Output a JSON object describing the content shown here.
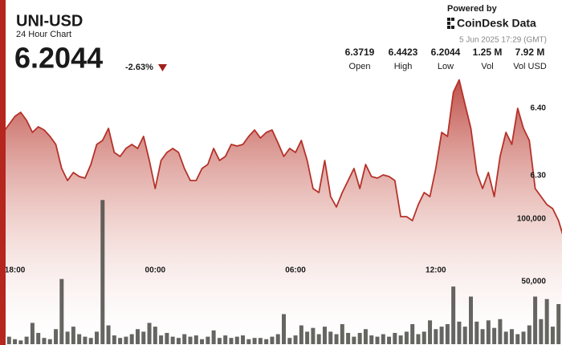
{
  "header": {
    "title": "UNI-USD",
    "subtitle": "24 Hour Chart",
    "price": "6.2044",
    "change": "-2.63%",
    "powered": "Powered by",
    "brand": "CoinDesk Data",
    "timestamp": "5 Jun 2025 17:29 (GMT)"
  },
  "stats": [
    {
      "value": "6.3719",
      "label": "Open"
    },
    {
      "value": "6.4423",
      "label": "High"
    },
    {
      "value": "6.2044",
      "label": "Low"
    },
    {
      "value": "1.25 M",
      "label": "Vol"
    },
    {
      "value": "7.92 M",
      "label": "Vol USD"
    }
  ],
  "chart_data": {
    "type": "line",
    "categories": [
      null,
      null,
      "18:00",
      null,
      null,
      null,
      null,
      null,
      null,
      null,
      null,
      null,
      null,
      null,
      null,
      null,
      null,
      null,
      null,
      null,
      null,
      null,
      null,
      null,
      null,
      null,
      "00:00",
      null,
      null,
      null,
      null,
      null,
      null,
      null,
      null,
      null,
      null,
      null,
      null,
      null,
      null,
      null,
      null,
      null,
      null,
      null,
      null,
      null,
      null,
      null,
      "06:00",
      null,
      null,
      null,
      null,
      null,
      null,
      null,
      null,
      null,
      null,
      null,
      null,
      null,
      null,
      null,
      null,
      null,
      null,
      null,
      null,
      null,
      null,
      null,
      "12:00",
      null,
      null,
      null,
      null,
      null,
      null,
      null,
      null,
      null,
      null,
      null,
      null,
      null,
      null,
      null,
      null,
      null,
      null,
      null,
      null,
      null,
      null
    ],
    "series": [
      {
        "color": "#b5322a",
        "values": [
          6.3643,
          6.3762,
          6.3881,
          6.394,
          6.3821,
          6.3643,
          6.3726,
          6.3679,
          6.3583,
          6.3464,
          6.3107,
          6.2929,
          6.3048,
          6.2988,
          6.2964,
          6.3167,
          6.3464,
          6.3524,
          6.3702,
          6.3345,
          6.3286,
          6.3405,
          6.3464,
          6.3405,
          6.3583,
          6.3226,
          6.281,
          6.3226,
          6.3345,
          6.3405,
          6.3345,
          6.3107,
          6.2929,
          6.2929,
          6.3107,
          6.3167,
          6.3405,
          6.3226,
          6.3286,
          6.3464,
          6.344,
          6.3464,
          6.3583,
          6.3679,
          6.356,
          6.3643,
          6.3679,
          6.3488,
          6.3286,
          6.3405,
          6.3345,
          6.3524,
          6.3226,
          6.281,
          6.275,
          6.3226,
          6.269,
          6.2536,
          6.275,
          6.2929,
          6.3107,
          6.281,
          6.3167,
          6.2988,
          6.2964,
          6.3012,
          6.2988,
          6.2929,
          6.2393,
          6.2393,
          6.2333,
          6.2571,
          6.275,
          6.269,
          6.3107,
          6.3643,
          6.3583,
          6.4238,
          6.4423,
          6.406,
          6.3702,
          6.3048,
          6.281,
          6.3048,
          6.269,
          6.3286,
          6.3643,
          6.3464,
          6.4,
          6.3702,
          6.3524,
          6.281,
          6.269,
          6.2571,
          6.2512,
          6.2333,
          6.2044
        ]
      },
      {
        "type": "bar",
        "axis": "y2",
        "color": "#4a4a45",
        "values": [
          3000,
          6000,
          4000,
          3000,
          6000,
          17000,
          9000,
          5000,
          4000,
          12000,
          52000,
          10000,
          14000,
          8000,
          6000,
          5000,
          10000,
          115000,
          15000,
          7000,
          5000,
          6000,
          8000,
          12000,
          10000,
          17000,
          14000,
          7000,
          9000,
          6000,
          5000,
          8000,
          6000,
          7000,
          4000,
          6000,
          11000,
          5000,
          7000,
          5000,
          6000,
          7000,
          4000,
          5000,
          5000,
          4000,
          6000,
          8000,
          24000,
          5000,
          7000,
          15000,
          10000,
          13000,
          8000,
          14000,
          10000,
          8000,
          16000,
          9000,
          6000,
          9000,
          12000,
          7000,
          6000,
          8000,
          6000,
          9000,
          7000,
          10000,
          16000,
          8000,
          10000,
          19000,
          12000,
          14000,
          16000,
          46000,
          18000,
          14000,
          38000,
          18000,
          12000,
          19000,
          13000,
          20000,
          10000,
          12000,
          8000,
          10000,
          15000,
          38000,
          20000,
          36000,
          14000,
          32000,
          10000
        ]
      }
    ],
    "ylim": [
      6.05,
      6.45
    ],
    "yticks": [
      {
        "value": 6.4,
        "label": "6.40"
      },
      {
        "value": 6.3,
        "label": "6.30"
      }
    ],
    "y2lim": [
      0,
      215000
    ],
    "y2ticks": [
      {
        "value": 100000,
        "label": "100,000"
      },
      {
        "value": 50000,
        "label": "50,000"
      }
    ],
    "grid": false
  }
}
